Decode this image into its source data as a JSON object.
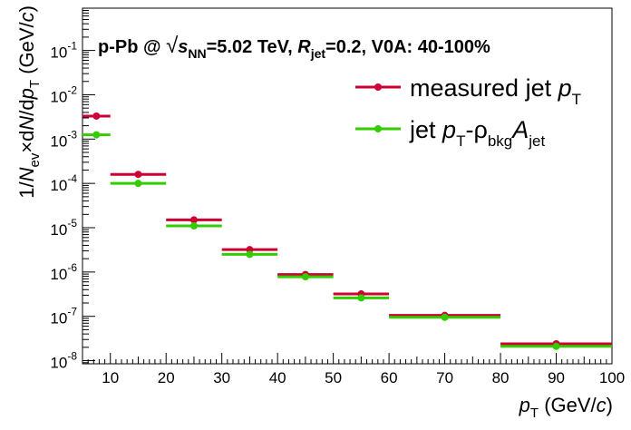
{
  "chart_data": {
    "type": "scatter",
    "title_parts": {
      "prefix": "p-Pb @ ",
      "sqrt": "√",
      "s": "s",
      "nn": "NN",
      "energy": "=5.02 TeV,  ",
      "r": "R",
      "jet": "jet",
      "rest": "=0.2, V0A: 40-100%"
    },
    "xlabel_parts": {
      "p": "p",
      "t": "T",
      "unit_open": " (GeV/",
      "c": "c",
      "unit_close": ")"
    },
    "ylabel_parts": {
      "pre": "1/",
      "n": "N",
      "ev": "ev",
      "times": "×d",
      "n2": "N",
      "d": "/d",
      "p": "p",
      "t": "T",
      "unit_open": " (GeV/",
      "c": "c",
      "unit_close": ")"
    },
    "xlim": [
      5,
      100
    ],
    "ylim": [
      8.5e-09,
      0.9
    ],
    "yscale": "log",
    "x_ticks": [
      "10",
      "20",
      "30",
      "40",
      "50",
      "60",
      "70",
      "80",
      "90",
      "100"
    ],
    "y_ticks": [
      {
        "base": "10",
        "exp": "-8"
      },
      {
        "base": "10",
        "exp": "-7"
      },
      {
        "base": "10",
        "exp": "-6"
      },
      {
        "base": "10",
        "exp": "-5"
      },
      {
        "base": "10",
        "exp": "-4"
      },
      {
        "base": "10",
        "exp": "-3"
      },
      {
        "base": "10",
        "exp": "-2"
      },
      {
        "base": "10",
        "exp": "-1"
      }
    ],
    "grid": false,
    "legend_position": "top-right",
    "series": [
      {
        "color": "#cc0033",
        "legend_parts": {
          "text": "measured jet ",
          "p": "p",
          "t": "T"
        },
        "points": [
          {
            "x": 7.5,
            "xlow": 5,
            "xhigh": 10,
            "y": 0.0033
          },
          {
            "x": 15,
            "xlow": 10,
            "xhigh": 20,
            "y": 0.00016
          },
          {
            "x": 25,
            "xlow": 20,
            "xhigh": 30,
            "y": 1.5e-05
          },
          {
            "x": 35,
            "xlow": 30,
            "xhigh": 40,
            "y": 3.2e-06
          },
          {
            "x": 45,
            "xlow": 40,
            "xhigh": 50,
            "y": 8.8e-07
          },
          {
            "x": 55,
            "xlow": 50,
            "xhigh": 60,
            "y": 3.2e-07
          },
          {
            "x": 70,
            "xlow": 60,
            "xhigh": 80,
            "y": 1.05e-07
          },
          {
            "x": 90,
            "xlow": 80,
            "xhigh": 100,
            "y": 2.4e-08
          }
        ]
      },
      {
        "color": "#33cc00",
        "legend_parts": {
          "text": "jet ",
          "p": "p",
          "t": "T",
          "rho": "-ρ",
          "bkg": "bkg",
          "a": "A",
          "jet": "jet"
        },
        "points": [
          {
            "x": 7.5,
            "xlow": 5,
            "xhigh": 10,
            "y": 0.00125
          },
          {
            "x": 15,
            "xlow": 10,
            "xhigh": 20,
            "y": 0.0001
          },
          {
            "x": 25,
            "xlow": 20,
            "xhigh": 30,
            "y": 1.1e-05
          },
          {
            "x": 35,
            "xlow": 30,
            "xhigh": 40,
            "y": 2.5e-06
          },
          {
            "x": 45,
            "xlow": 40,
            "xhigh": 50,
            "y": 7.8e-07
          },
          {
            "x": 55,
            "xlow": 50,
            "xhigh": 60,
            "y": 2.6e-07
          },
          {
            "x": 70,
            "xlow": 60,
            "xhigh": 80,
            "y": 9.5e-08
          },
          {
            "x": 90,
            "xlow": 80,
            "xhigh": 100,
            "y": 2.1e-08
          }
        ]
      }
    ]
  }
}
